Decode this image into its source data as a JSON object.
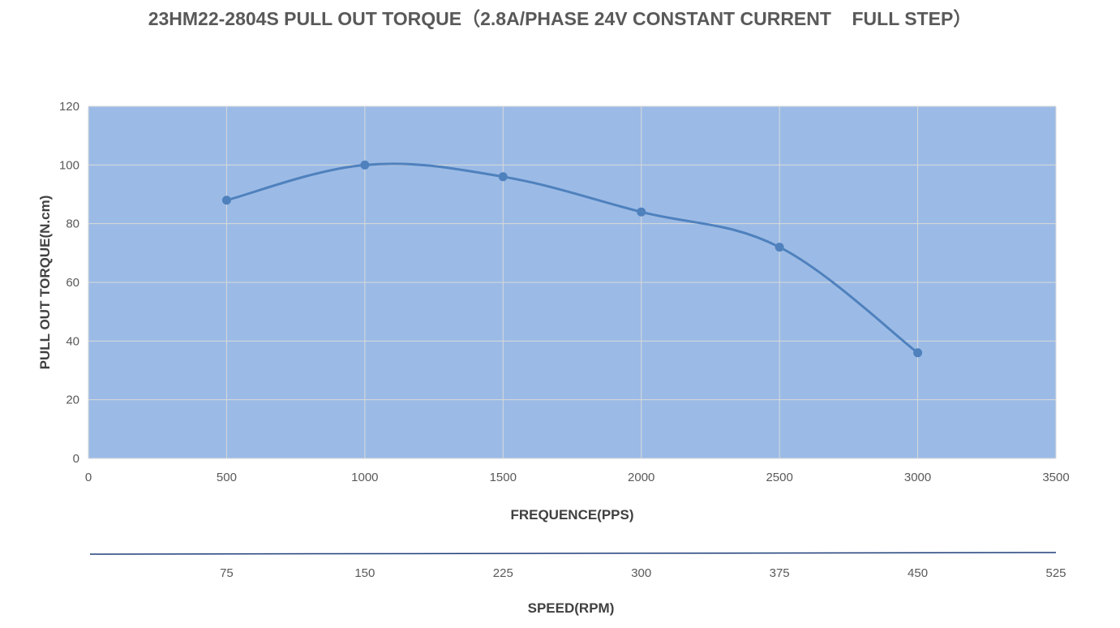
{
  "chart_data": {
    "type": "line",
    "title": "23HM22-2804S PULL OUT TORQUE（2.8A/PHASE 24V CONSTANT CURRENT    FULL STEP）",
    "xlabel": "FREQUENCE(PPS)",
    "ylabel": "PULL OUT TORQUE(N.cm)",
    "xlim": [
      0,
      3500
    ],
    "ylim": [
      0,
      120
    ],
    "x_ticks": [
      "0",
      "500",
      "1000",
      "1500",
      "2000",
      "2500",
      "3000",
      "3500"
    ],
    "y_ticks": [
      "0",
      "20",
      "40",
      "60",
      "80",
      "100",
      "120"
    ],
    "grid": true,
    "plot_background": "#9bbbe6",
    "line_color": "#4f81bd",
    "series": [
      {
        "x": [
          500,
          1000,
          1500,
          2000,
          2500,
          3000
        ],
        "values": [
          88,
          100,
          96,
          84,
          72,
          36
        ]
      }
    ],
    "secondary_axis": {
      "label": "SPEED(RPM)",
      "ticks": [
        "75",
        "150",
        "225",
        "300",
        "375",
        "450",
        "525"
      ],
      "positions": [
        500,
        1000,
        1500,
        2000,
        2500,
        3000,
        3500
      ],
      "line_color": "#1f3f7a"
    }
  }
}
